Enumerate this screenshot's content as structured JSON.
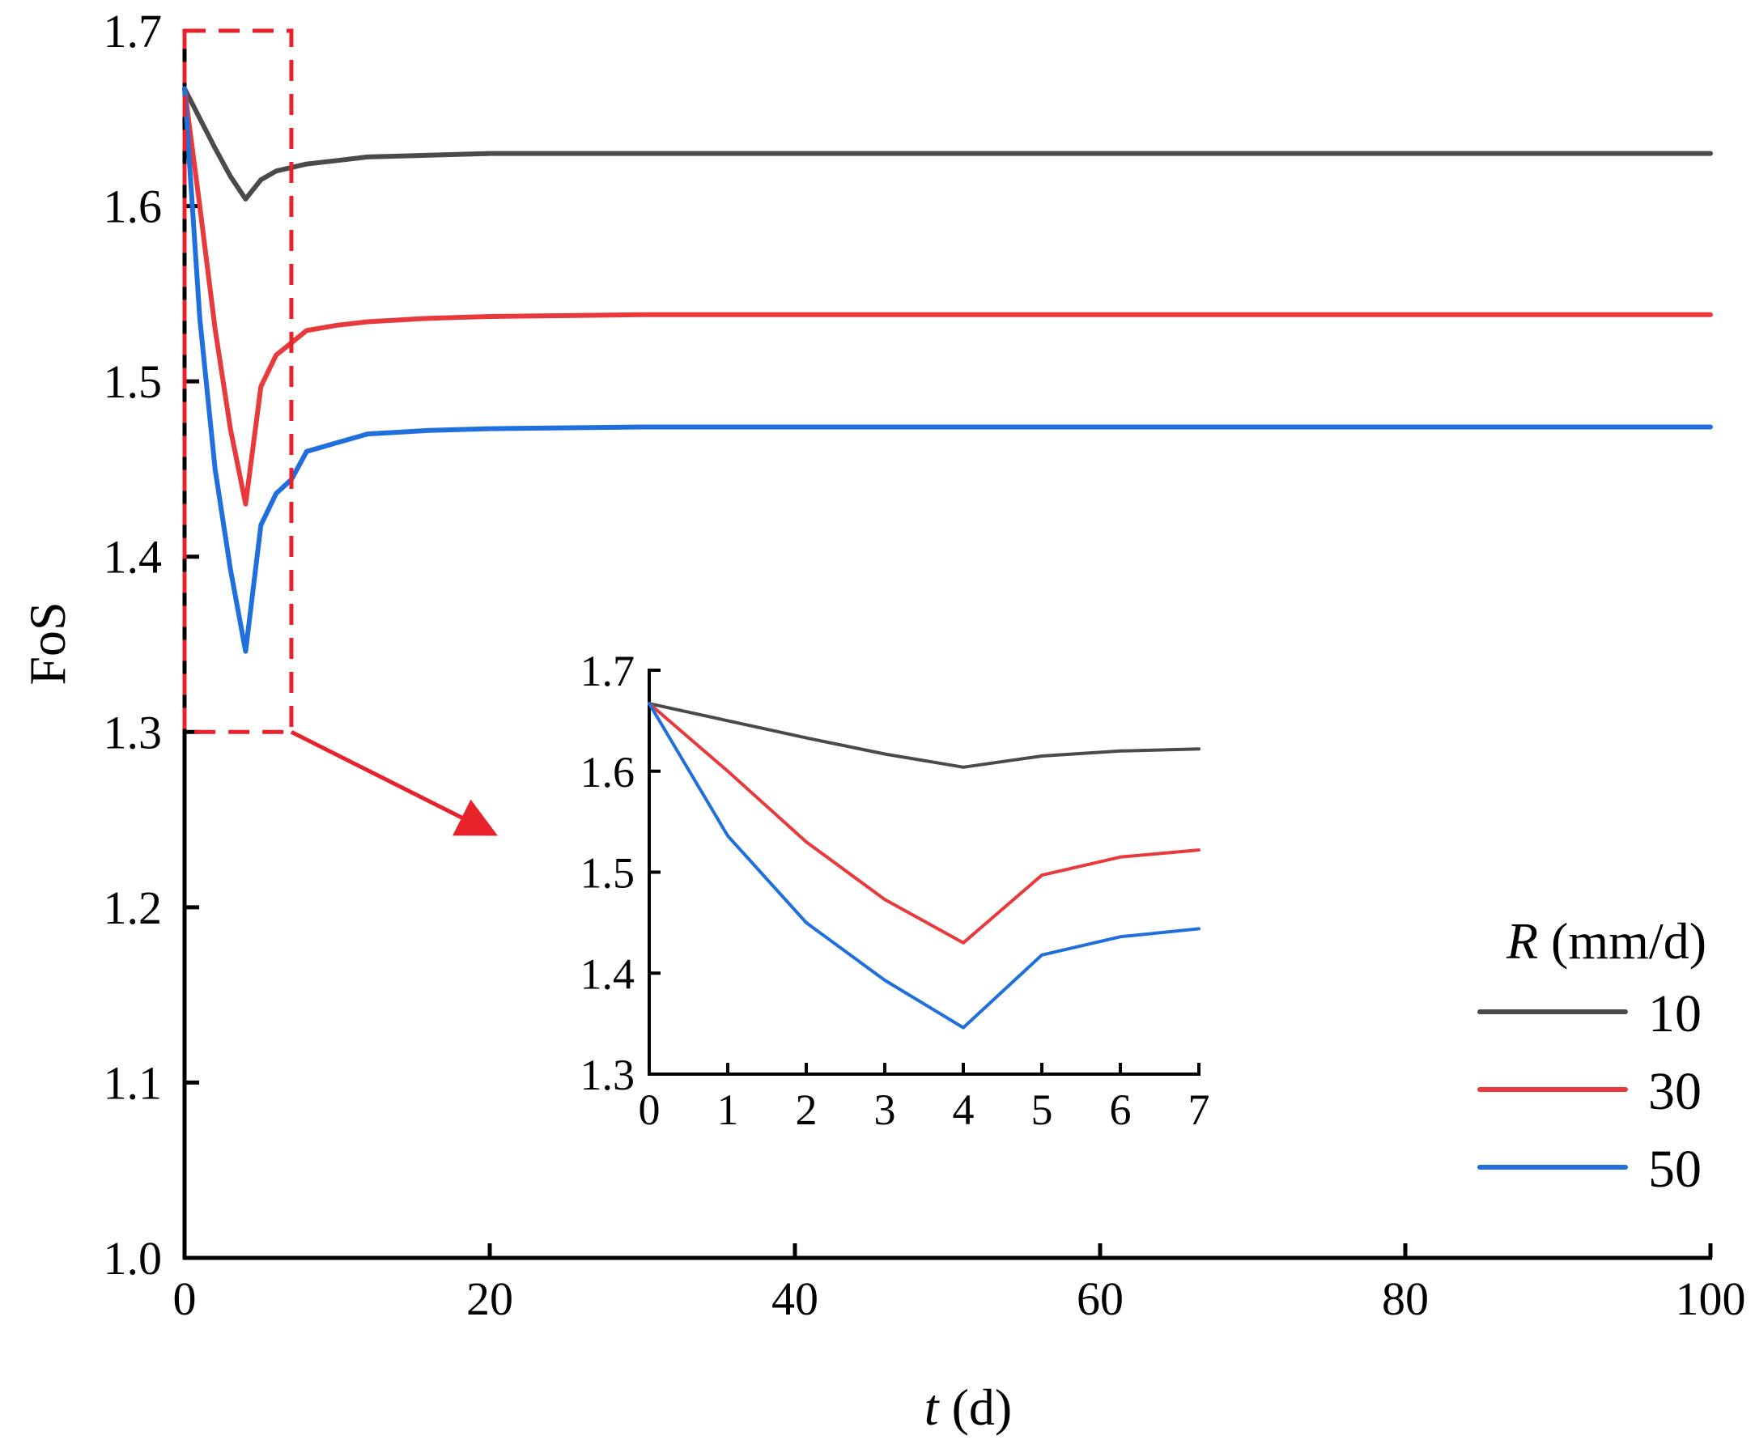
{
  "chart_data": {
    "type": "line",
    "xlabel": {
      "italic": "t",
      "rest": " (d)"
    },
    "ylabel": "FoS",
    "xlim": [
      0,
      100
    ],
    "ylim": [
      1.0,
      1.7
    ],
    "xticks": [
      0,
      20,
      40,
      60,
      80,
      100
    ],
    "yticks": [
      1.0,
      1.1,
      1.2,
      1.3,
      1.4,
      1.5,
      1.6,
      1.7
    ],
    "ytick_labels": [
      "1.0",
      "1.1",
      "1.2",
      "1.3",
      "1.4",
      "1.5",
      "1.6",
      "1.7"
    ],
    "legend": {
      "title_italic": "R",
      "title_rest": " (mm/d)",
      "placement": "lower-right"
    },
    "series": [
      {
        "name": "10",
        "color": "#4a4a4a",
        "x": [
          0,
          1,
          2,
          3,
          4,
          5,
          6,
          7,
          8,
          10,
          12,
          16,
          20,
          30,
          40,
          60,
          80,
          100
        ],
        "y": [
          1.667,
          1.65,
          1.633,
          1.617,
          1.604,
          1.615,
          1.62,
          1.622,
          1.624,
          1.626,
          1.628,
          1.629,
          1.63,
          1.63,
          1.63,
          1.63,
          1.63,
          1.63
        ]
      },
      {
        "name": "30",
        "color": "#e8393c",
        "x": [
          0,
          1,
          2,
          3,
          4,
          5,
          6,
          7,
          8,
          10,
          12,
          16,
          20,
          30,
          40,
          60,
          80,
          100
        ],
        "y": [
          1.667,
          1.6,
          1.53,
          1.473,
          1.43,
          1.497,
          1.515,
          1.522,
          1.529,
          1.532,
          1.534,
          1.536,
          1.537,
          1.538,
          1.538,
          1.538,
          1.538,
          1.538
        ]
      },
      {
        "name": "50",
        "color": "#1f6fdc",
        "x": [
          0,
          1,
          2,
          3,
          4,
          5,
          6,
          7,
          8,
          10,
          12,
          16,
          20,
          30,
          40,
          60,
          80,
          100
        ],
        "y": [
          1.667,
          1.536,
          1.45,
          1.393,
          1.346,
          1.418,
          1.436,
          1.444,
          1.46,
          1.465,
          1.47,
          1.472,
          1.473,
          1.474,
          1.474,
          1.474,
          1.474,
          1.474
        ]
      }
    ],
    "inset": {
      "xlim": [
        0,
        7
      ],
      "ylim": [
        1.3,
        1.7
      ],
      "xticks": [
        0,
        1,
        2,
        3,
        4,
        5,
        6,
        7
      ],
      "yticks": [
        1.3,
        1.4,
        1.5,
        1.6,
        1.7
      ],
      "ytick_labels": [
        "1.3",
        "1.4",
        "1.5",
        "1.6",
        "1.7"
      ],
      "zoom_region": {
        "x": [
          0,
          7
        ],
        "y": [
          1.3,
          1.7
        ]
      }
    }
  },
  "colors": {
    "zoom_box": "#e8222a",
    "axes": "#000000"
  }
}
